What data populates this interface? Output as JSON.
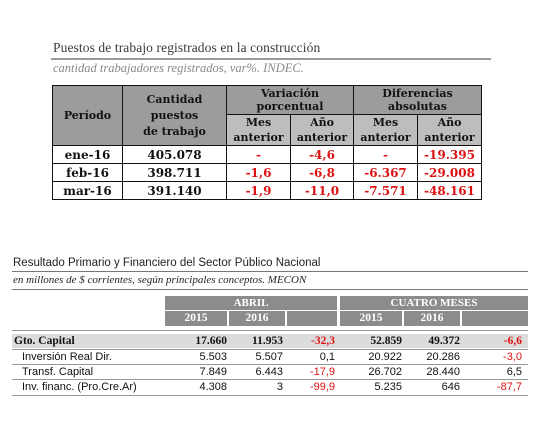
{
  "table1": {
    "title": "Puestos de trabajo registrados en la construcción",
    "subtitle": "cantidad trabajadores registrados, var%. INDEC.",
    "headers": {
      "periodo": "Período",
      "cantidad": [
        "Cantidad",
        "puestos",
        "de trabajo"
      ],
      "variacion": [
        "Variación",
        "porcentual"
      ],
      "diferencias": [
        "Diferencias",
        "absolutas"
      ],
      "mes": [
        "Mes",
        "anterior"
      ],
      "anio": [
        "Año",
        "anterior"
      ]
    },
    "rows": [
      {
        "periodo": "ene-16",
        "cantidad": "405.078",
        "var_mes": "-",
        "var_anio": "-4,6",
        "dif_mes": "-",
        "dif_anio": "-19.395"
      },
      {
        "periodo": "feb-16",
        "cantidad": "398.711",
        "var_mes": "-1,6",
        "var_anio": "-6,8",
        "dif_mes": "-6.367",
        "dif_anio": "-29.008"
      },
      {
        "periodo": "mar-16",
        "cantidad": "391.140",
        "var_mes": "-1,9",
        "var_anio": "-11,0",
        "dif_mes": "-7.571",
        "dif_anio": "-48.161"
      }
    ]
  },
  "table2": {
    "title": "Resultado Primario y Financiero del Sector Público Nacional",
    "subtitle": "en millones de $ corrientes, según principales conceptos. MECON",
    "groups": [
      "ABRIL",
      "CUATRO MESES"
    ],
    "years": [
      "2015",
      "2016",
      "2015",
      "2016"
    ],
    "rows": [
      {
        "label": "Gto. Capital",
        "a2015": "17.660",
        "a2016": "11.953",
        "avar": "-32,3",
        "c2015": "52.859",
        "c2016": "49.372",
        "cvar": "-6,6"
      },
      {
        "label": "Inversión Real Dir.",
        "a2015": "5.503",
        "a2016": "5.507",
        "avar": "0,1",
        "c2015": "20.922",
        "c2016": "20.286",
        "cvar": "-3,0"
      },
      {
        "label": "Transf. Capital",
        "a2015": "7.849",
        "a2016": "6.443",
        "avar": "-17,9",
        "c2015": "26.702",
        "c2016": "28.440",
        "cvar": "6,5"
      },
      {
        "label": "Inv. financ. (Pro.Cre.Ar)",
        "a2015": "4.308",
        "a2016": "3",
        "avar": "-99,9",
        "c2015": "5.235",
        "c2016": "646",
        "cvar": "-87,7"
      }
    ]
  }
}
